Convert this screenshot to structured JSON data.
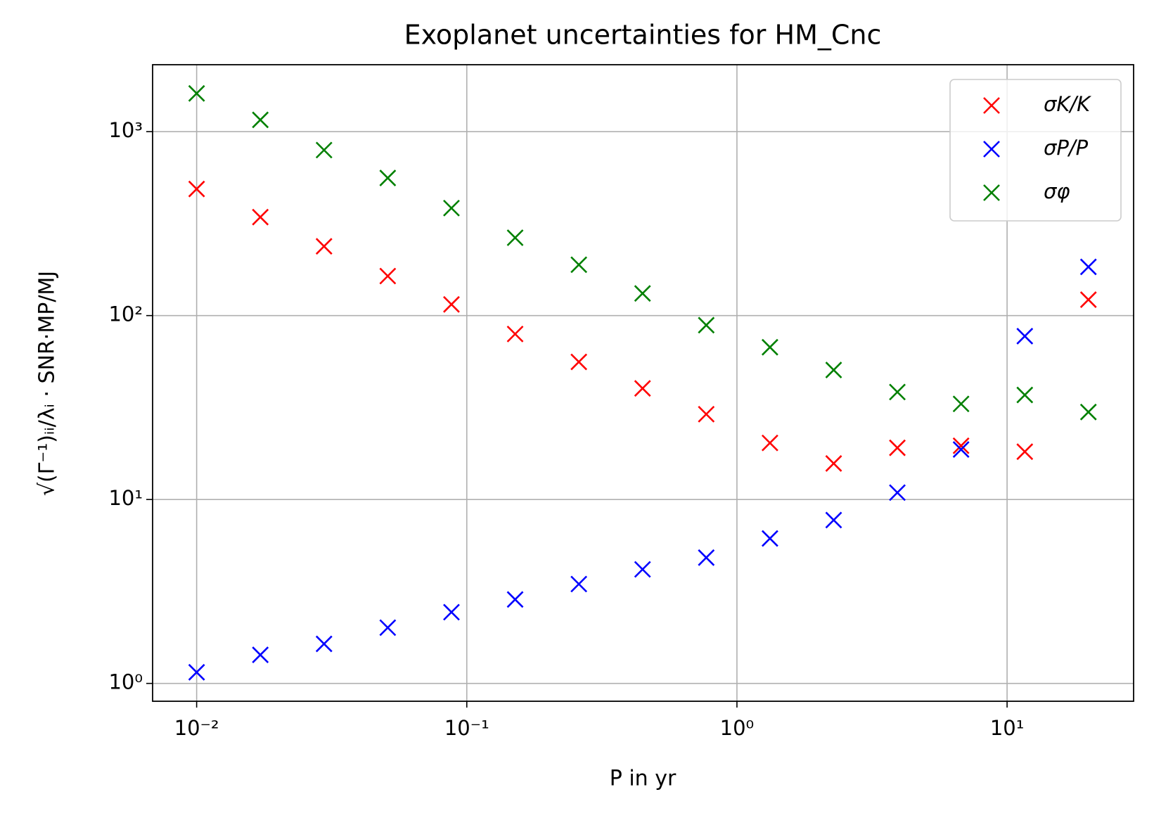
{
  "chart_data": {
    "type": "scatter",
    "title": "Exoplanet uncertainties for HM_Cnc",
    "xlabel": "P in yr",
    "ylabel": "√(Γ⁻¹)ᵢᵢ/λᵢ · SNR·MP/MJ",
    "x": [
      0.01,
      0.01721,
      0.02962,
      0.05098,
      0.08774,
      0.151,
      0.2599,
      0.4473,
      0.7699,
      1.325,
      2.281,
      3.925,
      6.756,
      11.63,
      20.0
    ],
    "series": [
      {
        "name": "σK/K",
        "color": "#ff0000",
        "values": [
          488,
          343,
          238,
          164,
          115,
          79.4,
          56,
          40.2,
          29.1,
          20.3,
          15.7,
          19.1,
          19.6,
          18.2,
          122
        ]
      },
      {
        "name": "σP/P",
        "color": "#0000ff",
        "values": [
          1.15,
          1.43,
          1.64,
          2.01,
          2.44,
          2.86,
          3.47,
          4.17,
          4.83,
          6.14,
          7.73,
          10.9,
          18.7,
          77.3,
          184
        ]
      },
      {
        "name": "σφ",
        "color": "#008000",
        "values": [
          1614,
          1159,
          794,
          560,
          384,
          265,
          189,
          132,
          88.7,
          67.3,
          50.6,
          38.4,
          33.1,
          37.0,
          29.9
        ]
      }
    ],
    "xscale": "log",
    "yscale": "log",
    "xlim": [
      0.00687,
      29.4
    ],
    "ylim": [
      0.8,
      2312
    ],
    "xticks": [
      {
        "value": 0.01,
        "label": "10⁻²"
      },
      {
        "value": 0.1,
        "label": "10⁻¹"
      },
      {
        "value": 1,
        "label": "10⁰"
      },
      {
        "value": 10,
        "label": "10¹"
      }
    ],
    "yticks": [
      {
        "value": 1,
        "label": "10⁰"
      },
      {
        "value": 10,
        "label": "10¹"
      },
      {
        "value": 100,
        "label": "10²"
      },
      {
        "value": 1000,
        "label": "10³"
      }
    ],
    "grid": true,
    "legend": "upper right"
  }
}
